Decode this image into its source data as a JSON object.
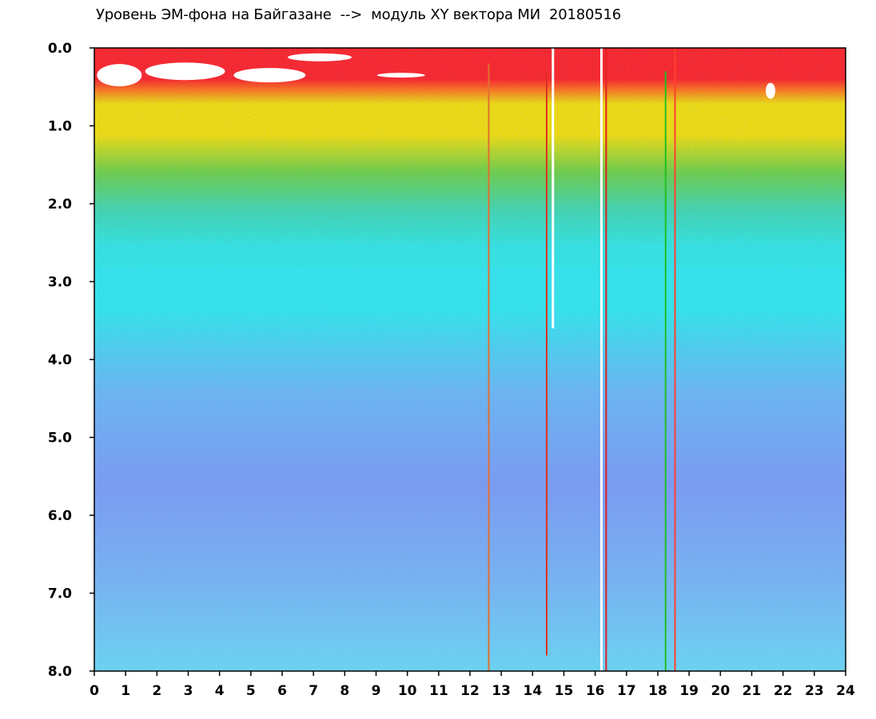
{
  "chart_data": {
    "type": "heatmap",
    "title": "Уровень ЭМ-фона на Байгазане  -->  модуль XY вектора МИ  20180516",
    "xlabel": "",
    "ylabel": "",
    "xlim": [
      0,
      24
    ],
    "ylim": [
      8.0,
      0.0
    ],
    "x_ticks": [
      "0",
      "1",
      "2",
      "3",
      "4",
      "5",
      "6",
      "7",
      "8",
      "9",
      "10",
      "11",
      "12",
      "13",
      "14",
      "15",
      "16",
      "17",
      "18",
      "19",
      "20",
      "21",
      "22",
      "23",
      "24"
    ],
    "y_ticks": [
      "0.0",
      "1.0",
      "2.0",
      "3.0",
      "4.0",
      "5.0",
      "6.0",
      "7.0",
      "8.0"
    ],
    "grid": false,
    "colors": {
      "saturated": "#ffffff",
      "very_high": "#ff2020",
      "high": "#ffe000",
      "medium": "#10a010",
      "low": "#30e8e8",
      "very_low": "#6060f0",
      "lowest": "#1010c8"
    },
    "vertical_features": [
      {
        "x": 12.6,
        "color": "#e07030",
        "from": 0.2,
        "to": 8.0
      },
      {
        "x": 14.45,
        "color": "#e03020",
        "from": 0.3,
        "to": 7.8
      },
      {
        "x": 14.65,
        "color": "#ffffff",
        "from": 0.0,
        "to": 3.6
      },
      {
        "x": 16.2,
        "color": "#ffffff",
        "from": 0.0,
        "to": 8.0
      },
      {
        "x": 16.35,
        "color": "#e02020",
        "from": 0.0,
        "to": 8.0
      },
      {
        "x": 18.25,
        "color": "#20c020",
        "from": 0.3,
        "to": 8.0
      },
      {
        "x": 18.55,
        "color": "#ff4030",
        "from": 0.0,
        "to": 8.0
      }
    ]
  }
}
